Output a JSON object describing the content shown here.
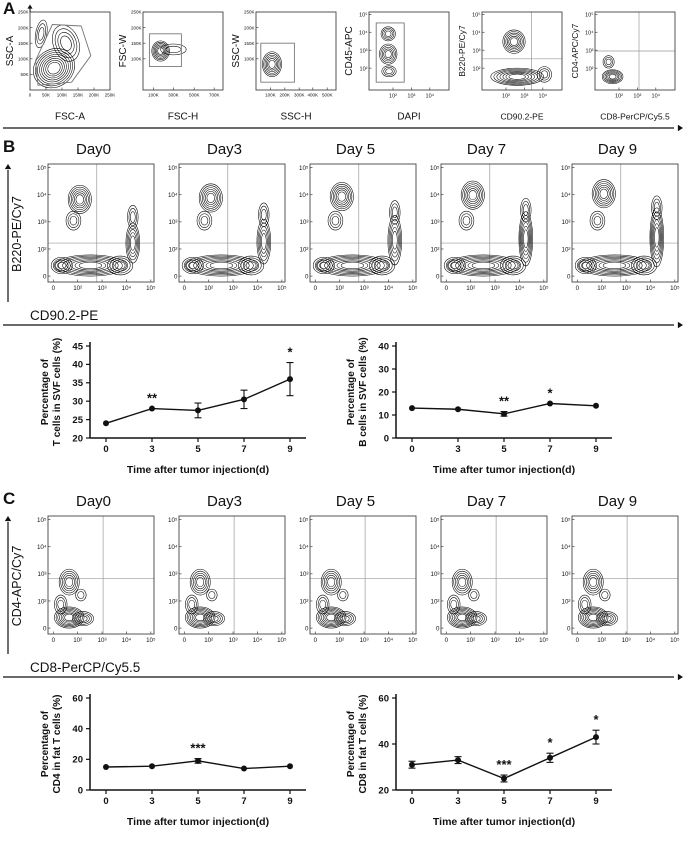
{
  "colors": {
    "ink": "#111111",
    "contour": "#000000",
    "gate": "#777777",
    "quadrant": "#9a9a9a",
    "axis": "#444444"
  },
  "panel_a": {
    "label": "A",
    "plots": [
      {
        "ylabel": "SSC-A",
        "xlabel": "FSC-A",
        "scale": "linear",
        "xticks": [
          "0",
          "50K",
          "100K",
          "150K",
          "200K",
          "250K"
        ],
        "yticks": [
          "50K",
          "100K",
          "150K",
          "200K",
          "250K"
        ]
      },
      {
        "ylabel": "FSC-W",
        "xlabel": "FSC-H",
        "scale": "linear",
        "xticks": [
          "100K",
          "300K",
          "500K",
          "700K"
        ],
        "yticks": [
          "100K",
          "150K",
          "200K",
          "250K"
        ]
      },
      {
        "ylabel": "SSC-W",
        "xlabel": "SSC-H",
        "scale": "linear",
        "xticks": [
          "100K",
          "200K",
          "300K",
          "400K",
          "500K"
        ],
        "yticks": [
          "100K",
          "150K",
          "200K",
          "250K"
        ]
      },
      {
        "ylabel": "CD45-APC",
        "xlabel": "DAPI",
        "scale": "log",
        "xticks": [
          "10²",
          "10³",
          "10⁴"
        ],
        "yticks": [
          "10²",
          "10³",
          "10⁴",
          "10⁵"
        ]
      },
      {
        "ylabel": "B220-PE/Cy7",
        "xlabel": "CD90.2-PE",
        "scale": "log",
        "xticks": [
          "10²",
          "10³",
          "10⁴"
        ],
        "yticks": [
          "10²",
          "10³",
          "10⁴",
          "10⁵"
        ]
      },
      {
        "ylabel": "CD4-APC/Cy7",
        "xlabel": "CD8-PerCP/Cy5.5",
        "scale": "log",
        "xticks": [
          "10²",
          "10³",
          "10⁴"
        ],
        "yticks": [
          "10²",
          "10³",
          "10⁴",
          "10⁵"
        ]
      }
    ]
  },
  "panel_b": {
    "label": "B",
    "days": [
      "Day0",
      "Day3",
      "Day 5",
      "Day 7",
      "Day 9"
    ],
    "flow_ylabel": "B220-PE/Cy7",
    "flow_xlabel": "CD90.2-PE",
    "flow_xticks": [
      "0",
      "10²",
      "10³",
      "10⁴",
      "10⁵"
    ],
    "flow_yticks": [
      "0",
      "10²",
      "10³",
      "10⁴",
      "10⁵"
    ]
  },
  "panel_c": {
    "label": "C",
    "days": [
      "Day0",
      "Day3",
      "Day 5",
      "Day 7",
      "Day 9"
    ],
    "flow_ylabel": "CD4-APC/Cy7",
    "flow_xlabel": "CD8-PerCP/Cy5.5",
    "flow_xticks": [
      "0",
      "10²",
      "10³",
      "10⁴",
      "10⁵"
    ],
    "flow_yticks": [
      "0",
      "10²",
      "10³",
      "10⁴",
      "10⁵"
    ]
  },
  "chart_data": [
    {
      "id": "t_cells_svf",
      "type": "line",
      "x": [
        0,
        3,
        5,
        7,
        9
      ],
      "values": [
        24,
        28,
        27.5,
        30.5,
        36
      ],
      "errors": [
        0,
        0,
        2,
        2.5,
        4.5
      ],
      "significance": [
        "",
        "**",
        "",
        "",
        "*"
      ],
      "ylabel_lines": [
        "Percentage of",
        "T cells in SVF cells (%)"
      ],
      "xlabel": "Time after tumor injection(d)",
      "ylim": [
        20,
        45
      ],
      "yticks": [
        20,
        25,
        30,
        35,
        40,
        45
      ]
    },
    {
      "id": "b_cells_svf",
      "type": "line",
      "x": [
        0,
        3,
        5,
        7,
        9
      ],
      "values": [
        13,
        12.5,
        10.5,
        15,
        14
      ],
      "errors": [
        0,
        0,
        1,
        0,
        0
      ],
      "significance": [
        "",
        "",
        "**",
        "*",
        ""
      ],
      "ylabel_lines": [
        "Percentage of",
        "B cells in SVF cells (%)"
      ],
      "xlabel": "Time after tumor injection(d)",
      "ylim": [
        0,
        40
      ],
      "yticks": [
        0,
        10,
        20,
        30,
        40
      ]
    },
    {
      "id": "cd4_fat_t",
      "type": "line",
      "x": [
        0,
        3,
        5,
        7,
        9
      ],
      "values": [
        15,
        15.5,
        19,
        14,
        15.5
      ],
      "errors": [
        0,
        0,
        1.5,
        0,
        0
      ],
      "significance": [
        "",
        "",
        "***",
        "",
        ""
      ],
      "ylabel_lines": [
        "Percentage of",
        "CD4 in fat T cells (%)"
      ],
      "xlabel": "Time after tumor injection(d)",
      "ylim": [
        0,
        60
      ],
      "yticks": [
        0,
        20,
        40,
        60
      ]
    },
    {
      "id": "cd8_fat_t",
      "type": "line",
      "x": [
        0,
        3,
        5,
        7,
        9
      ],
      "values": [
        31,
        33,
        25,
        34,
        43
      ],
      "errors": [
        1.5,
        1.5,
        1.5,
        2,
        3
      ],
      "significance": [
        "",
        "",
        "***",
        "*",
        "*"
      ],
      "ylabel_lines": [
        "Percentage of",
        "CD8 in fat T cells (%)"
      ],
      "xlabel": "Time after tumor injection(d)",
      "ylim": [
        20,
        60
      ],
      "yticks": [
        20,
        40,
        60
      ]
    }
  ]
}
